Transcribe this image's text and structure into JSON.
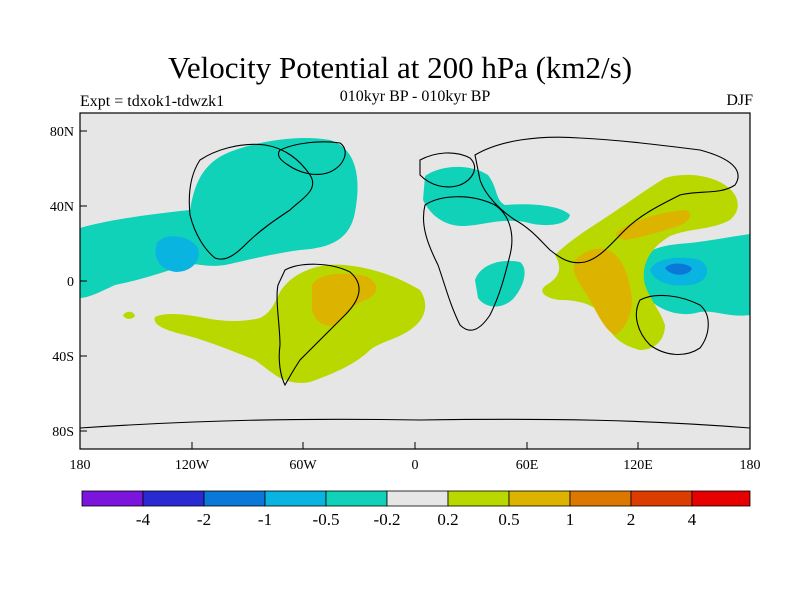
{
  "title": "Velocity Potential at 200 hPa (km2/s)",
  "experiment": "Expt = tdxok1-tdwzk1",
  "subtitle": "010kyr BP - 010kyr BP",
  "season": "DJF",
  "axes": {
    "y_labels": [
      "80N",
      "40N",
      "0",
      "40S",
      "80S"
    ],
    "x_labels": [
      "180",
      "120W",
      "60W",
      "0",
      "60E",
      "120E",
      "180"
    ]
  },
  "colorbar": {
    "labels": [
      "-4",
      "-2",
      "-1",
      "-0.5",
      "-0.2",
      "0.2",
      "0.5",
      "1",
      "2",
      "4"
    ],
    "colors": [
      "#7b14dc",
      "#2a2ad2",
      "#0a78d8",
      "#0ab4e0",
      "#10d2b8",
      "#e6e6e6",
      "#b8d800",
      "#dcb400",
      "#dc7800",
      "#dc3c00",
      "#e60000"
    ]
  },
  "colors": {
    "background": "#e6e6e6",
    "neg_weak": "#10d2b8",
    "neg_mid": "#0ab4e0",
    "neg_strong": "#0a78d8",
    "pos_weak": "#b8d800",
    "pos_mid": "#dcb400"
  }
}
